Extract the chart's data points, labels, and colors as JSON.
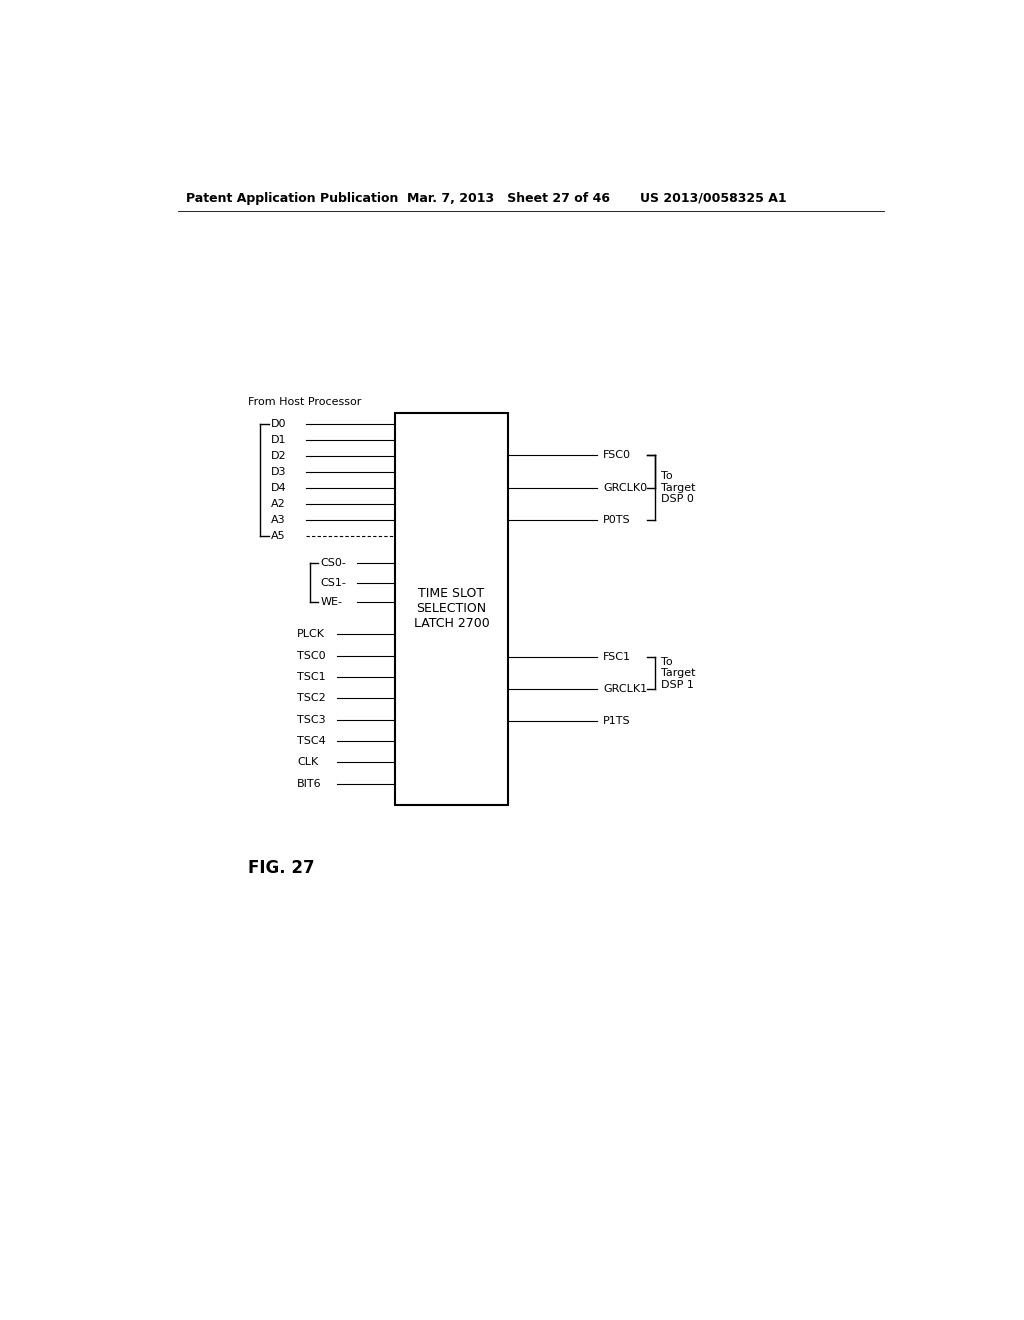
{
  "page_header_left": "Patent Application Publication",
  "page_header_mid": "Mar. 7, 2013   Sheet 27 of 46",
  "page_header_right": "US 2013/0058325 A1",
  "fig_label": "FIG. 27",
  "box_label": "TIME SLOT\nSELECTION\nLATCH 2700",
  "from_label": "From Host Processor",
  "left_inputs_top": [
    "D0",
    "D1",
    "D2",
    "D3",
    "D4",
    "A2",
    "A3",
    "A5"
  ],
  "left_inputs_mid": [
    "CS0-",
    "CS1-",
    "WE-"
  ],
  "left_inputs_bot": [
    "PLCK",
    "TSC0",
    "TSC1",
    "TSC2",
    "TSC3",
    "TSC4",
    "CLK",
    "BIT6"
  ],
  "right_outputs_top": [
    "FSC0",
    "GRCLK0",
    "P0TS"
  ],
  "right_outputs_bot": [
    "FSC1",
    "GRCLK1",
    "P1TS"
  ],
  "right_label_top": "To\nTarget\nDSP 0",
  "right_label_bot": "To\nTarget\nDSP 1",
  "bg_color": "#ffffff",
  "line_color": "#000000",
  "text_color": "#000000"
}
